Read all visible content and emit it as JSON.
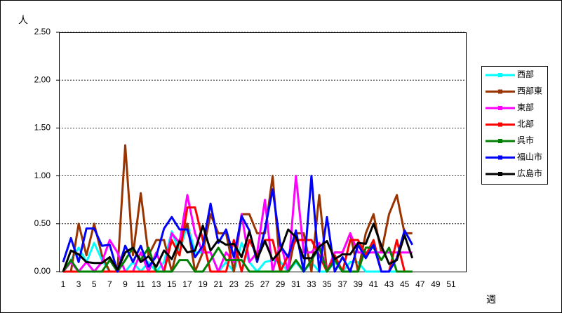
{
  "chart_data": {
    "type": "line",
    "y_label": "人",
    "x_label": "週",
    "categories": [
      "1",
      null,
      "3",
      null,
      "5",
      null,
      "7",
      null,
      "9",
      null,
      "11",
      null,
      "13",
      null,
      "15",
      null,
      "17",
      null,
      "19",
      null,
      "21",
      null,
      "23",
      null,
      "25",
      null,
      "27",
      null,
      "29",
      null,
      "31",
      null,
      "33",
      null,
      "35",
      null,
      "37",
      null,
      "39",
      null,
      "41",
      null,
      "43",
      null,
      "45",
      null,
      "47",
      null,
      "49",
      null,
      "51",
      null
    ],
    "ylim": [
      0,
      2.5
    ],
    "yticks": [
      {
        "value": 0,
        "label": "0.00"
      },
      {
        "value": 0.5,
        "label": "0.50"
      },
      {
        "value": 1,
        "label": "1.00"
      },
      {
        "value": 1.5,
        "label": "1.50"
      },
      {
        "value": 2,
        "label": "2.00"
      },
      {
        "value": 2.5,
        "label": "2.50"
      }
    ],
    "grid": true,
    "legend": "right",
    "series": [
      {
        "name": "西部",
        "color": "#00ffff",
        "values": [
          0,
          0.12,
          0.25,
          0.1,
          0.3,
          0.12,
          0,
          0,
          0,
          0.1,
          0,
          0.1,
          0,
          0.1,
          0.42,
          0.2,
          0.5,
          0.2,
          0.2,
          0.2,
          0,
          0.1,
          0,
          0.3,
          0.1,
          0,
          0.1,
          0.12,
          0.1,
          0,
          0.1,
          0,
          0.1,
          0,
          0,
          0.1,
          0,
          0.1,
          0.1,
          0,
          0,
          0,
          0,
          0,
          0,
          0,
          null,
          null,
          null,
          null,
          null,
          null
        ]
      },
      {
        "name": "西部東",
        "color": "#993300",
        "values": [
          0,
          0,
          0.5,
          0.17,
          0.5,
          0.17,
          0,
          0,
          1.32,
          0.17,
          0.82,
          0.17,
          0.33,
          0.33,
          0,
          0.33,
          0.5,
          0,
          0.2,
          0.6,
          0.4,
          0.4,
          0,
          0.6,
          0.6,
          0.4,
          0.4,
          1.0,
          0,
          0,
          0.4,
          0.4,
          0,
          0.8,
          0,
          0.2,
          0.2,
          0.4,
          0,
          0.4,
          0.6,
          0.2,
          0.6,
          0.8,
          0.4,
          0.4,
          null,
          null,
          null,
          null,
          null,
          null
        ]
      },
      {
        "name": "東部",
        "color": "#ff00ff",
        "values": [
          0,
          0.1,
          0,
          0.1,
          0,
          0.1,
          0.33,
          0.2,
          0,
          0,
          0.2,
          0,
          0.2,
          0,
          0.4,
          0.3,
          0.8,
          0.4,
          0.2,
          0.2,
          0,
          0.2,
          0.1,
          0.6,
          0.1,
          0.2,
          0.75,
          0,
          0.3,
          0,
          1.0,
          0.2,
          0.2,
          0.3,
          0,
          0.2,
          0.2,
          0.4,
          0.2,
          0.2,
          0.2,
          0.2,
          0.2,
          0.2,
          0.2,
          0.2,
          null,
          null,
          null,
          null,
          null,
          null
        ]
      },
      {
        "name": "北部",
        "color": "#ff0000",
        "values": [
          0,
          0,
          0,
          0,
          0,
          0,
          0,
          0,
          0,
          0,
          0,
          0,
          0,
          0,
          0.33,
          0.17,
          0.67,
          0.67,
          0.33,
          0,
          0,
          0,
          0.33,
          0,
          0.33,
          0.17,
          0.33,
          0.33,
          0,
          0.17,
          0.33,
          0.33,
          0.33,
          0.17,
          0,
          0.17,
          0,
          0.33,
          0.33,
          0.17,
          0.33,
          0,
          0,
          0.33,
          0,
          0,
          null,
          null,
          null,
          null,
          null,
          null
        ]
      },
      {
        "name": "呉市",
        "color": "#008000",
        "values": [
          0,
          0.12,
          0,
          0,
          0,
          0,
          0.12,
          0,
          0.12,
          0.25,
          0.12,
          0.25,
          0,
          0,
          0,
          0.12,
          0.12,
          0,
          0,
          0.12,
          0.25,
          0.12,
          0.12,
          0.12,
          0,
          0,
          0,
          0,
          0,
          0,
          0.12,
          0,
          0.12,
          0.25,
          0,
          0.12,
          0,
          0,
          0,
          0.25,
          0.25,
          0.12,
          0.25,
          0,
          0,
          0,
          null,
          null,
          null,
          null,
          null,
          null
        ]
      },
      {
        "name": "福山市",
        "color": "#0000ff",
        "values": [
          0.1,
          0.35,
          0.1,
          0.45,
          0.45,
          0.27,
          0.28,
          0,
          0.27,
          0.1,
          0.27,
          0.05,
          0.16,
          0.45,
          0.57,
          0.44,
          0.44,
          0.15,
          0.27,
          0.71,
          0.3,
          0.44,
          0.15,
          0.58,
          0.43,
          0.1,
          0.44,
          0.86,
          0.27,
          0.15,
          0.43,
          0,
          1.0,
          0,
          0.57,
          0,
          0.15,
          0,
          0.28,
          0.14,
          0.28,
          0,
          0,
          0.14,
          0.43,
          0.28,
          null,
          null,
          null,
          null,
          null,
          null
        ]
      },
      {
        "name": "広島市",
        "color": "#000000",
        "values": [
          0,
          0.22,
          0.18,
          0.1,
          0.09,
          0.09,
          0.15,
          0.02,
          0.2,
          0.25,
          0.1,
          0.16,
          0.05,
          0.22,
          0.13,
          0.32,
          0.2,
          0.22,
          0.48,
          0.22,
          0.33,
          0.28,
          0.29,
          0.15,
          0.42,
          0.13,
          0.32,
          0.12,
          0.22,
          0.44,
          0.36,
          0.14,
          0.14,
          0.26,
          0.32,
          0.13,
          0.18,
          0.18,
          0.3,
          0.29,
          0.5,
          0.27,
          0.08,
          0.12,
          0.38,
          0.14,
          null,
          null,
          null,
          null,
          null,
          null
        ]
      }
    ]
  }
}
